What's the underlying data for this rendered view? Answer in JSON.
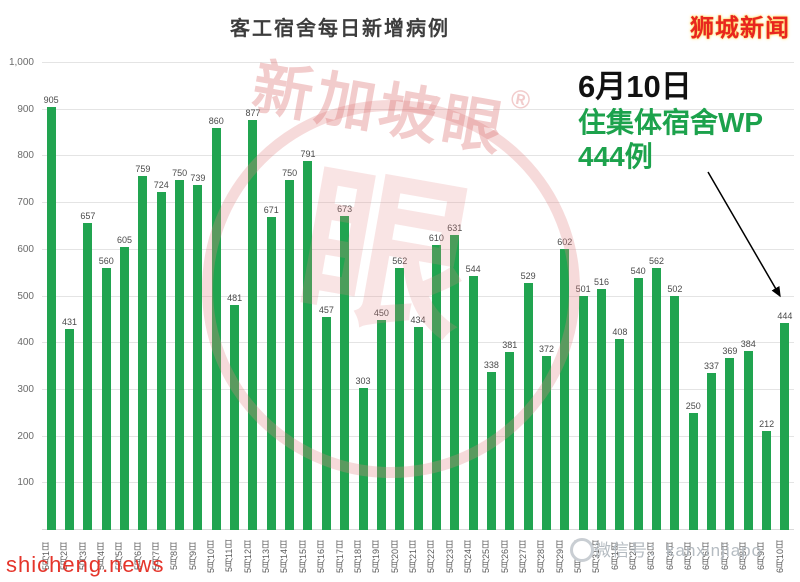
{
  "header": {
    "title": "客工宿舍每日新增病例",
    "brand": "狮城新闻"
  },
  "annotation": {
    "date": "6月10日",
    "line2": "住集体宿舍WP",
    "line3": "444例"
  },
  "watermark": {
    "text": "新加坡眼",
    "registered": "®",
    "glyph": "眼"
  },
  "footer": {
    "site": "shicheng.news",
    "wechat": "微信号：kanxinjiapo"
  },
  "colors": {
    "bar_green": "#21a450",
    "annotation_green": "#1ca24c",
    "brand_red": "#e8251f",
    "watermark_pink": "#de7878",
    "gridline": "#e4e4e4"
  },
  "chart_data": {
    "type": "bar",
    "title": "客工宿舍每日新增病例",
    "xlabel": "",
    "ylabel": "",
    "ylim": [
      0,
      1000
    ],
    "grid": true,
    "legend": false,
    "ytick_values": [
      100,
      200,
      300,
      400,
      500,
      600,
      700,
      800,
      900,
      1000
    ],
    "ytick_labels": [
      "100",
      "200",
      "300",
      "400",
      "500",
      "600",
      "700",
      "800",
      "900",
      "1,000"
    ],
    "categories": [
      "5月1日",
      "5月2日",
      "5月3日",
      "5月4日",
      "5月5日",
      "5月6日",
      "5月7日",
      "5月8日",
      "5月9日",
      "5月10日",
      "5月11日",
      "5月12日",
      "5月13日",
      "5月14日",
      "5月15日",
      "5月16日",
      "5月17日",
      "5月18日",
      "5月19日",
      "5月20日",
      "5月21日",
      "5月22日",
      "5月23日",
      "5月24日",
      "5月25日",
      "5月26日",
      "5月27日",
      "5月28日",
      "5月29日",
      "5月30日",
      "5月31日",
      "6月1日",
      "6月2日",
      "6月3日",
      "6月4日",
      "6月5日",
      "6月6日",
      "6月7日",
      "6月8日",
      "6月9日",
      "6月10日"
    ],
    "values": [
      905,
      431,
      657,
      560,
      605,
      759,
      724,
      750,
      739,
      860,
      481,
      877,
      671,
      750,
      791,
      457,
      673,
      303,
      450,
      562,
      434,
      610,
      631,
      544,
      338,
      381,
      529,
      372,
      602,
      501,
      516,
      408,
      540,
      562,
      502,
      250,
      337,
      369,
      384,
      212,
      444
    ]
  }
}
